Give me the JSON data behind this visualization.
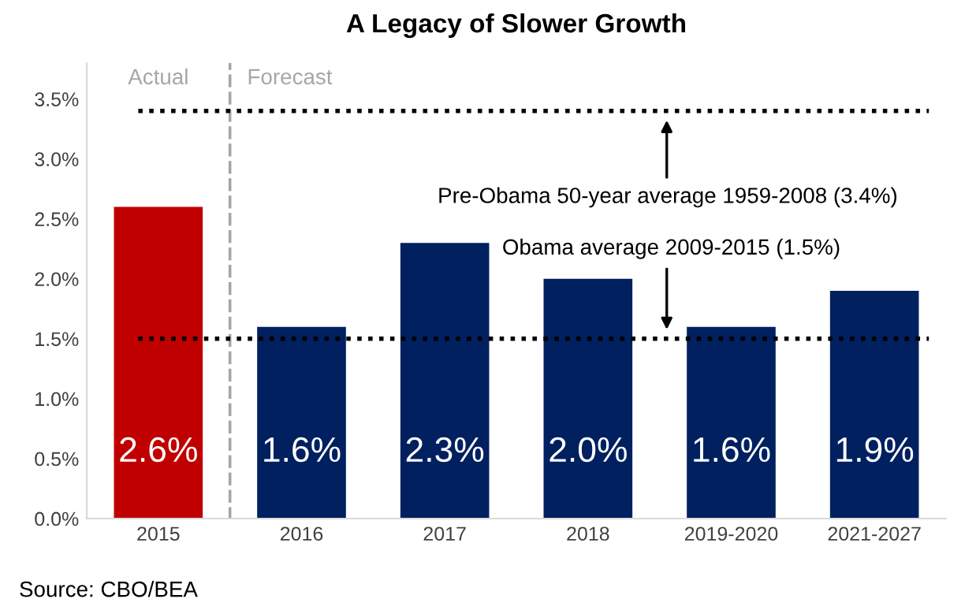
{
  "chart_data": {
    "type": "bar",
    "title": "A Legacy of Slower Growth",
    "categories": [
      "2015",
      "2016",
      "2017",
      "2018",
      "2019-2020",
      "2021-2027"
    ],
    "values": [
      2.6,
      1.6,
      2.3,
      2.0,
      1.6,
      1.9
    ],
    "colors": [
      "#c00000",
      "#002060",
      "#002060",
      "#002060",
      "#002060",
      "#002060"
    ],
    "value_labels": [
      "2.6%",
      "1.6%",
      "2.3%",
      "2.0%",
      "1.6%",
      "1.9%"
    ],
    "ylim": [
      0,
      3.8
    ],
    "yticks": [
      {
        "value": 0,
        "label": "0.0%"
      },
      {
        "value": 0.5,
        "label": "0.5%"
      },
      {
        "value": 1.0,
        "label": "1.0%"
      },
      {
        "value": 1.5,
        "label": "1.5%"
      },
      {
        "value": 2.0,
        "label": "2.0%"
      },
      {
        "value": 2.5,
        "label": "2.5%"
      },
      {
        "value": 3.0,
        "label": "3.0%"
      },
      {
        "value": 3.5,
        "label": "3.5%"
      }
    ],
    "ref_lines": [
      {
        "axis": "y",
        "value": 3.4,
        "label": "Pre-Obama 50-year average 1959-2008 (3.4%)",
        "color": "#000000",
        "line_style": "dotted"
      },
      {
        "axis": "y",
        "value": 1.5,
        "label": "Obama average 2009-2015 (1.5%)",
        "color": "#000000",
        "line_style": "dotted"
      }
    ],
    "annotations": [
      "Actual",
      "Forecast",
      "Source: CBO/BEA"
    ],
    "grid": false
  }
}
